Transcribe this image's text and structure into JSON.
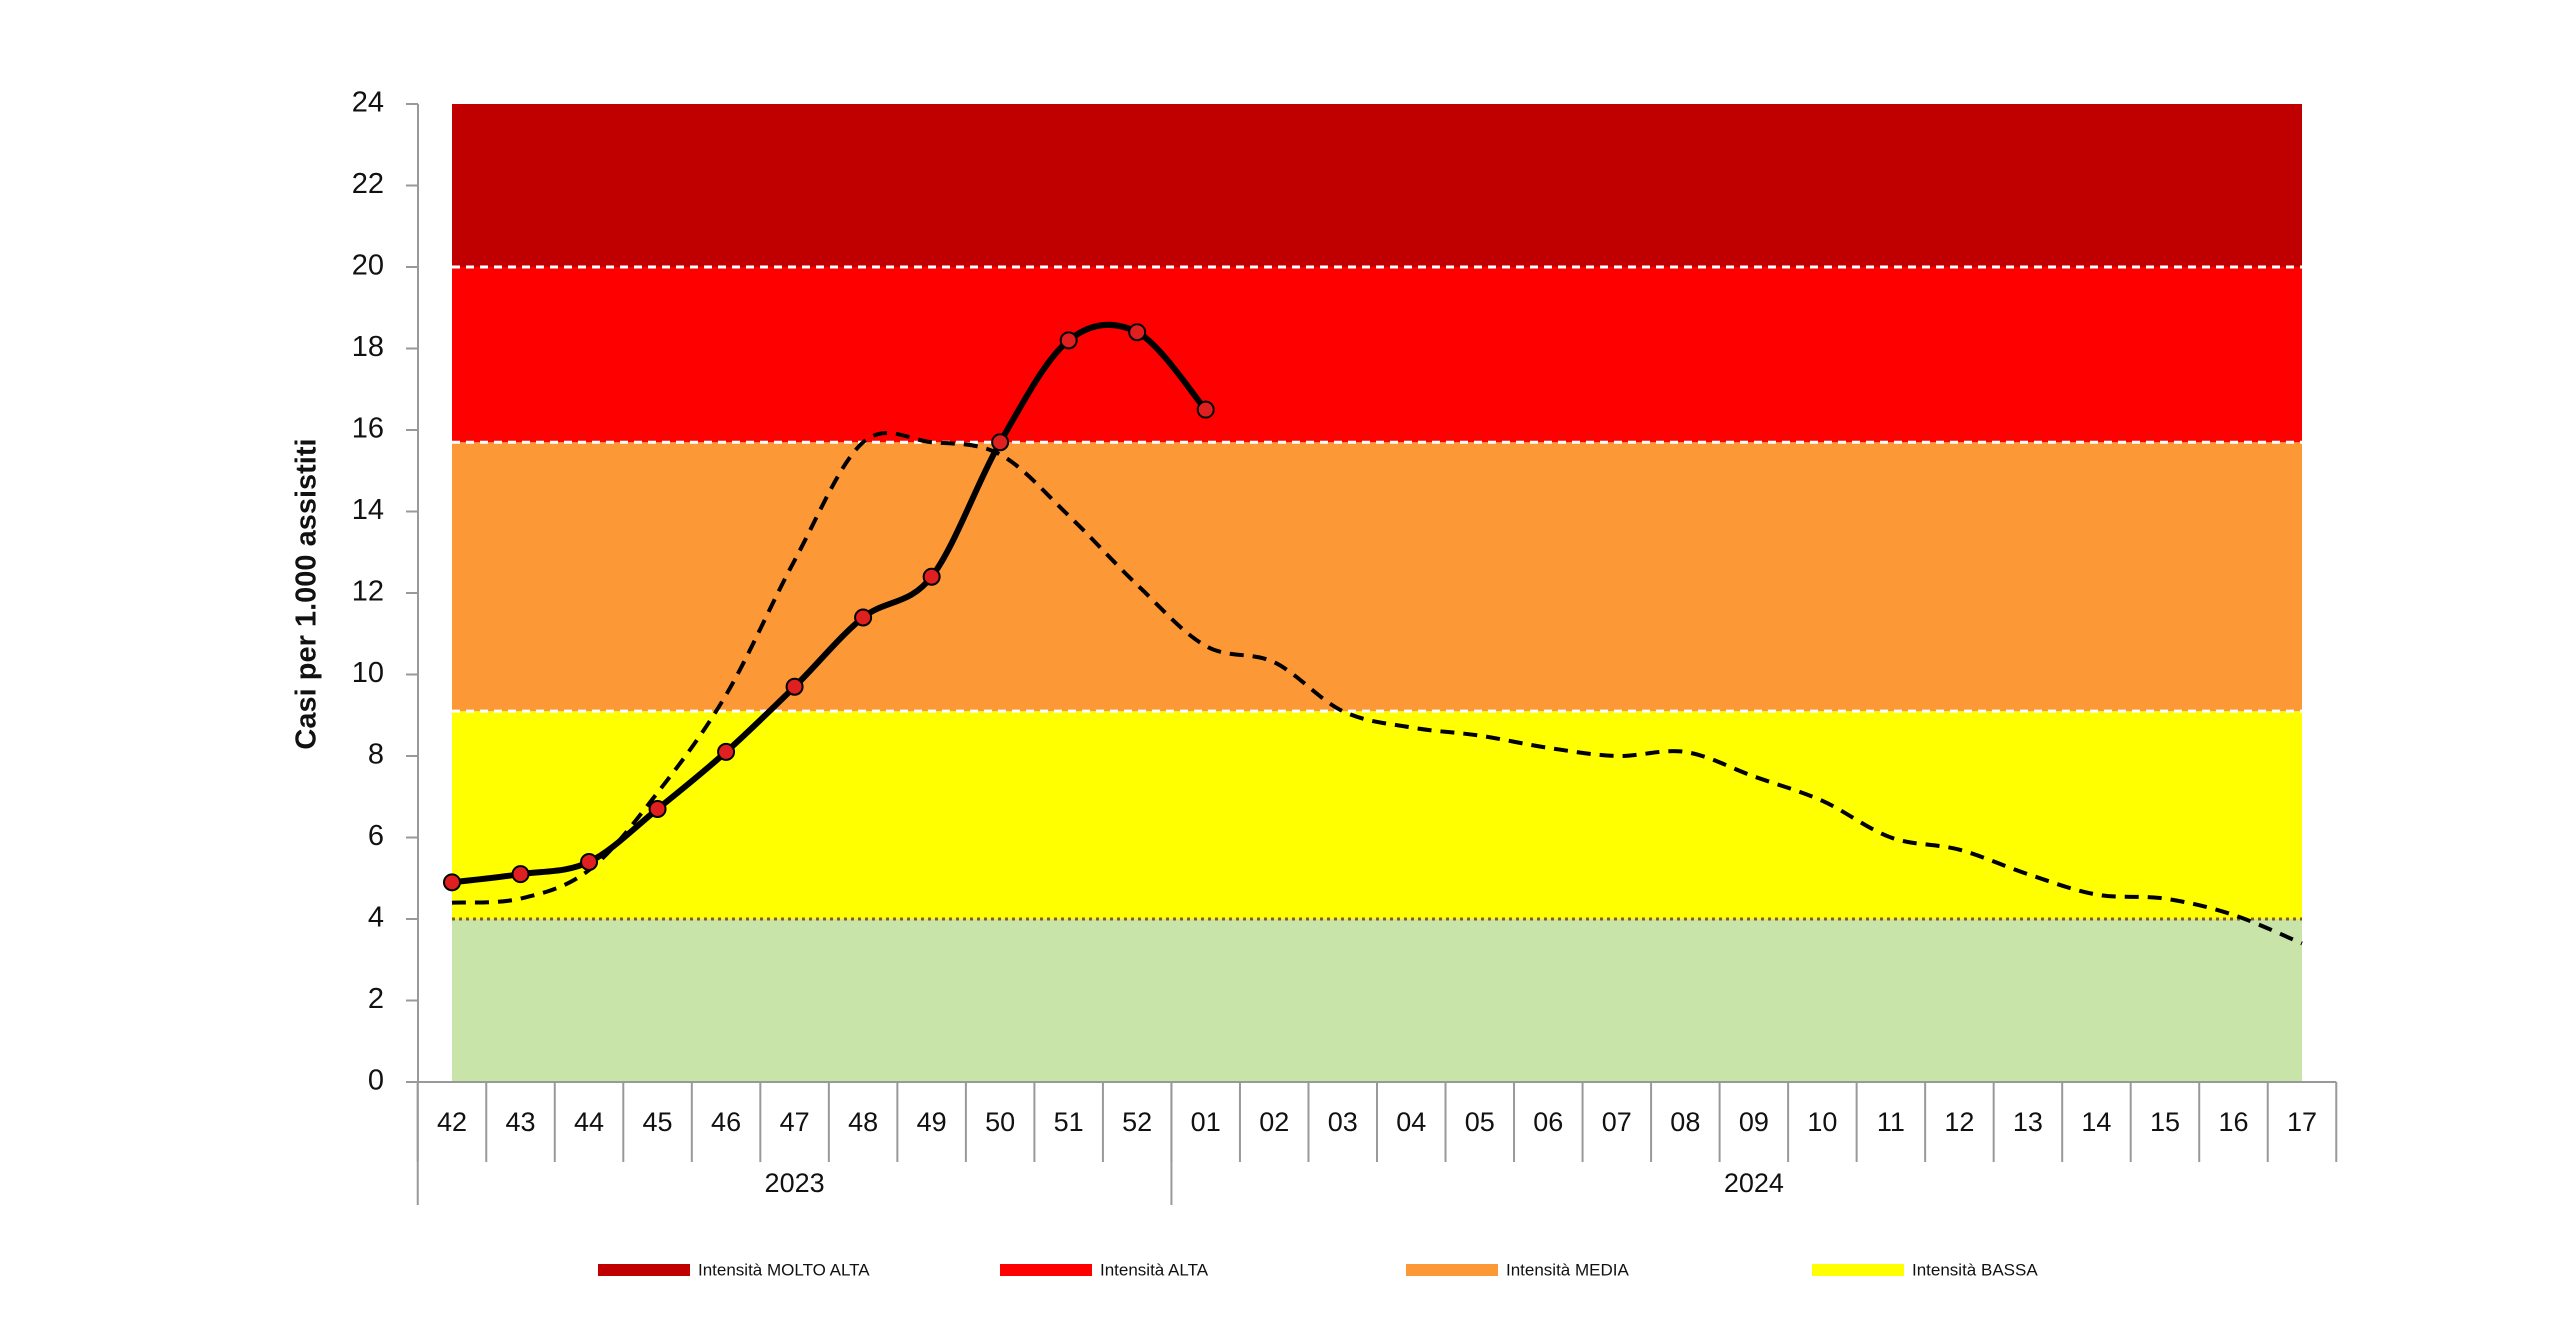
{
  "chart_data": {
    "type": "line",
    "y_label": "Casi per 1.000 assistiti",
    "categories": [
      "42",
      "43",
      "44",
      "45",
      "46",
      "47",
      "48",
      "49",
      "50",
      "51",
      "52",
      "01",
      "02",
      "03",
      "04",
      "05",
      "06",
      "07",
      "08",
      "09",
      "10",
      "11",
      "12",
      "13",
      "14",
      "15",
      "16",
      "17"
    ],
    "groups": [
      {
        "label": "2023",
        "count": 11
      },
      {
        "label": "2024",
        "count": 17
      }
    ],
    "series": [
      {
        "color": "#000000",
        "marker_color": "#e02020",
        "dash": false,
        "values": [
          4.9,
          5.1,
          5.4,
          6.7,
          8.1,
          9.7,
          11.4,
          12.4,
          15.7,
          18.2,
          18.4,
          16.5,
          null,
          null,
          null,
          null,
          null,
          null,
          null,
          null,
          null,
          null,
          null,
          null,
          null,
          null,
          null,
          null
        ]
      },
      {
        "color": "#000000",
        "dash": true,
        "values": [
          4.4,
          4.5,
          5.2,
          7.1,
          9.5,
          12.8,
          15.7,
          15.7,
          15.4,
          13.9,
          12.2,
          10.7,
          10.3,
          9.1,
          8.7,
          8.5,
          8.2,
          8.0,
          8.1,
          7.5,
          6.9,
          6.0,
          5.7,
          5.1,
          4.6,
          4.5,
          4.1,
          3.4
        ]
      }
    ],
    "bands": [
      {
        "from": 0,
        "to": 4,
        "color": "#c8e4a8",
        "border": "dotted"
      },
      {
        "name": "Intensità BASSA",
        "from": 4,
        "to": 9.1,
        "color": "#ffff00",
        "border": "dashed"
      },
      {
        "name": "Intensità MEDIA",
        "from": 9.1,
        "to": 15.7,
        "color": "#fd9836",
        "border": "dashed"
      },
      {
        "name": "Intensità ALTA",
        "from": 15.7,
        "to": 20,
        "color": "#ff0000",
        "border": "dashed"
      },
      {
        "name": "Intensità MOLTO ALTA",
        "from": 20,
        "to": 24,
        "color": "#c00000"
      }
    ],
    "legend_order": [
      4,
      3,
      2,
      1
    ],
    "ylim": [
      0,
      24
    ],
    "yticks": [
      0,
      2,
      4,
      6,
      8,
      10,
      12,
      14,
      16,
      18,
      20,
      22,
      24
    ]
  }
}
